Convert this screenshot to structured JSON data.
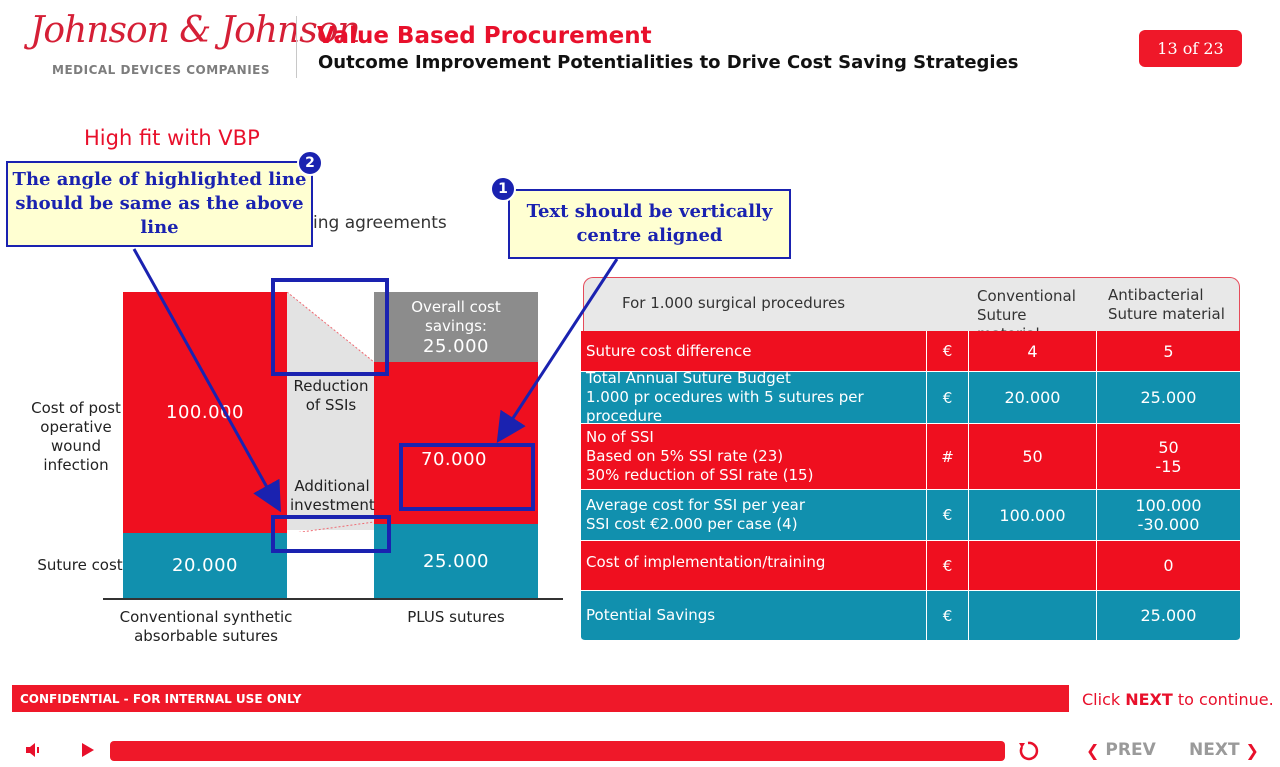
{
  "header": {
    "logo_text": "Johnson & Johnson",
    "logo_subtitle": "MEDICAL DEVICES COMPANIES",
    "title": "Value Based Procurement",
    "subtitle": "Outcome Improvement  Potentialities to Drive Cost Saving Strategies",
    "page_indicator": "13 of 23"
  },
  "section_heading": "High fit with VBP",
  "partial_text": "ing agreements",
  "chart": {
    "overall_label": "Overall cost savings:",
    "overall_value": "25.000",
    "reduction_label": "Reduction of SSIs",
    "additional_label": "Additional investment",
    "row_label_infection": "Cost of post operative wound infection",
    "row_label_suture": "Suture cost",
    "x_label_left": "Conventional synthetic absorbable sutures",
    "x_label_right": "PLUS sutures",
    "left_infection": "100.000",
    "left_suture": "20.000",
    "right_infection": "70.000",
    "right_suture": "25.000"
  },
  "table": {
    "header_main": "For 1.000 surgical procedures",
    "header_col1": "Conventional Suture material",
    "header_col2": "Antibacterial Suture material",
    "rows": [
      {
        "label1": "Suture cost difference",
        "label2": "",
        "label3": "",
        "unit": "€",
        "conv": "4",
        "anti1": "5",
        "anti2": ""
      },
      {
        "label1": "Total Annual Suture Budget",
        "label2": "1.000 pr ocedures with 5 sutures per procedure",
        "label3": "",
        "unit": "€",
        "conv": "20.000",
        "anti1": "25.000",
        "anti2": ""
      },
      {
        "label1": "No of SSI",
        "label2": "Based on 5% SSI rate (23)",
        "label3": "30% reduction of SSI rate (15)",
        "unit": "#",
        "conv": "50",
        "anti1": "50",
        "anti2": "-15"
      },
      {
        "label1": "Average cost for SSI per year",
        "label2": "SSI cost €2.000 per case (4)",
        "label3": "",
        "unit": "€",
        "conv": "100.000",
        "anti1": "100.000",
        "anti2": "-30.000"
      },
      {
        "label1": "Cost of implementation/training",
        "label2": "",
        "label3": "",
        "unit": "€",
        "conv": "",
        "anti1": "0",
        "anti2": ""
      },
      {
        "label1": "Potential Savings",
        "label2": "",
        "label3": "",
        "unit": "€",
        "conv": "",
        "anti1": "25.000",
        "anti2": ""
      }
    ]
  },
  "annotations": {
    "note1_number": "1",
    "note1_text": "Text should be vertically centre aligned",
    "note2_number": "2",
    "note2_text": "The angle of highlighted line should be same as the above line"
  },
  "footer": {
    "confidential": "CONFIDENTIAL - FOR INTERNAL USE ONLY",
    "hint_prefix": "Click",
    "hint_bold": "NEXT",
    "hint_suffix": "to continue.",
    "prev_label": "PREV",
    "next_label": "NEXT"
  },
  "icons": [
    "volume-icon",
    "play-icon",
    "replay-icon",
    "chevron-left-icon",
    "chevron-right-icon"
  ],
  "colors": {
    "brand_red": "#ef1829",
    "teal": "#1190ae",
    "annotation_blue": "#1a22b0",
    "annotation_fill": "#ffffd2"
  }
}
